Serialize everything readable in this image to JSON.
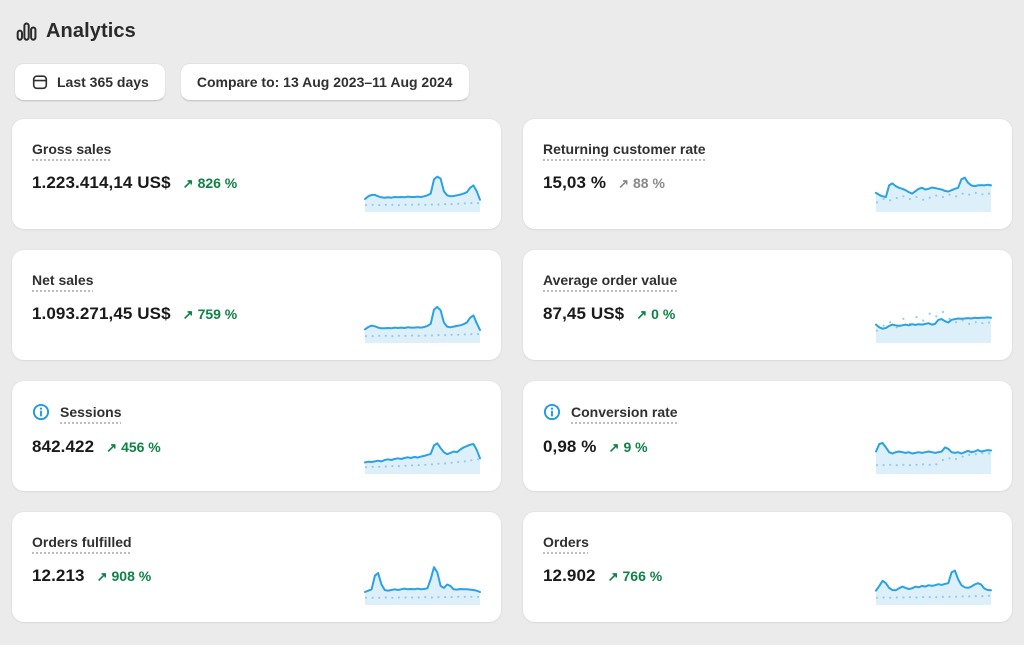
{
  "header": {
    "title": "Analytics"
  },
  "filters": {
    "date_range_label": "Last 365 days",
    "compare_label": "Compare to: 13 Aug 2023–11 Aug 2024"
  },
  "icons": {
    "trend_up": "↗"
  },
  "colors": {
    "page_background": "#ebebeb",
    "card_background": "#ffffff",
    "sparkline_blue": "#2aa2e3",
    "sparkline_fill": "rgba(42,162,227,0.16)",
    "compare_dot_blue": "#90ccef",
    "success_green": "#0e8345",
    "subdued_gray": "#8a8a8a"
  },
  "chart_data": [
    {
      "type": "line",
      "title": "Gross sales sparkline",
      "series": [
        {
          "name": "current",
          "values": [
            0.22,
            0.3,
            0.34,
            0.34,
            0.3,
            0.27,
            0.26,
            0.27,
            0.26,
            0.28,
            0.27,
            0.28,
            0.27,
            0.29,
            0.28,
            0.28,
            0.29,
            0.28,
            0.3,
            0.33,
            0.38,
            0.8,
            0.88,
            0.82,
            0.45,
            0.33,
            0.3,
            0.31,
            0.33,
            0.35,
            0.38,
            0.42,
            0.55,
            0.62,
            0.45,
            0.2
          ]
        },
        {
          "name": "previous",
          "values": [
            0.04,
            0.05,
            0.04,
            0.05,
            0.05,
            0.04,
            0.05,
            0.05,
            0.06,
            0.05,
            0.06,
            0.06,
            0.07,
            0.07,
            0.08,
            0.09,
            0.1,
            0.1
          ]
        }
      ]
    },
    {
      "type": "line",
      "title": "Returning customer rate sparkline",
      "series": [
        {
          "name": "current",
          "values": [
            0.4,
            0.34,
            0.3,
            0.28,
            0.62,
            0.68,
            0.6,
            0.55,
            0.52,
            0.48,
            0.42,
            0.38,
            0.45,
            0.52,
            0.55,
            0.5,
            0.52,
            0.56,
            0.54,
            0.52,
            0.5,
            0.46,
            0.44,
            0.48,
            0.52,
            0.55,
            0.8,
            0.85,
            0.7,
            0.62,
            0.6,
            0.62,
            0.63,
            0.62,
            0.64,
            0.62
          ]
        },
        {
          "name": "previous",
          "values": [
            0.12,
            0.22,
            0.18,
            0.25,
            0.3,
            0.22,
            0.28,
            0.2,
            0.26,
            0.32,
            0.28,
            0.35,
            0.3,
            0.38,
            0.35,
            0.4,
            0.36,
            0.38
          ]
        }
      ]
    },
    {
      "type": "line",
      "title": "Net sales sparkline",
      "series": [
        {
          "name": "current",
          "values": [
            0.24,
            0.31,
            0.35,
            0.33,
            0.29,
            0.27,
            0.27,
            0.28,
            0.27,
            0.29,
            0.28,
            0.29,
            0.28,
            0.3,
            0.29,
            0.29,
            0.3,
            0.29,
            0.31,
            0.34,
            0.4,
            0.82,
            0.9,
            0.8,
            0.44,
            0.32,
            0.3,
            0.32,
            0.34,
            0.36,
            0.39,
            0.44,
            0.58,
            0.65,
            0.42,
            0.22
          ]
        },
        {
          "name": "previous",
          "values": [
            0.04,
            0.04,
            0.05,
            0.05,
            0.04,
            0.05,
            0.05,
            0.06,
            0.05,
            0.06,
            0.06,
            0.07,
            0.07,
            0.08,
            0.08,
            0.09,
            0.1,
            0.1
          ]
        }
      ]
    },
    {
      "type": "line",
      "title": "Average order value sparkline",
      "series": [
        {
          "name": "current",
          "values": [
            0.38,
            0.3,
            0.26,
            0.28,
            0.34,
            0.38,
            0.36,
            0.34,
            0.36,
            0.38,
            0.36,
            0.39,
            0.37,
            0.39,
            0.38,
            0.4,
            0.42,
            0.38,
            0.4,
            0.52,
            0.54,
            0.48,
            0.44,
            0.52,
            0.54,
            0.56,
            0.55,
            0.56,
            0.57,
            0.56,
            0.58,
            0.57,
            0.58,
            0.58,
            0.59,
            0.58
          ]
        },
        {
          "name": "previous",
          "values": [
            0.2,
            0.35,
            0.45,
            0.3,
            0.55,
            0.4,
            0.6,
            0.5,
            0.7,
            0.62,
            0.75,
            0.55,
            0.45,
            0.5,
            0.4,
            0.45,
            0.42,
            0.44
          ]
        }
      ]
    },
    {
      "type": "line",
      "title": "Sessions sparkline",
      "series": [
        {
          "name": "current",
          "values": [
            0.18,
            0.2,
            0.19,
            0.21,
            0.23,
            0.21,
            0.25,
            0.27,
            0.25,
            0.28,
            0.3,
            0.28,
            0.31,
            0.33,
            0.31,
            0.34,
            0.32,
            0.35,
            0.37,
            0.4,
            0.43,
            0.68,
            0.74,
            0.6,
            0.48,
            0.42,
            0.46,
            0.5,
            0.48,
            0.56,
            0.62,
            0.66,
            0.7,
            0.72,
            0.55,
            0.3
          ]
        },
        {
          "name": "previous",
          "values": [
            0.04,
            0.05,
            0.05,
            0.06,
            0.07,
            0.07,
            0.08,
            0.09,
            0.1,
            0.11,
            0.12,
            0.14,
            0.15,
            0.17,
            0.19,
            0.21,
            0.24,
            0.27
          ]
        }
      ]
    },
    {
      "type": "line",
      "title": "Conversion rate sparkline",
      "series": [
        {
          "name": "current",
          "values": [
            0.5,
            0.72,
            0.75,
            0.62,
            0.48,
            0.44,
            0.48,
            0.5,
            0.48,
            0.46,
            0.48,
            0.44,
            0.46,
            0.48,
            0.46,
            0.48,
            0.5,
            0.48,
            0.46,
            0.48,
            0.5,
            0.62,
            0.58,
            0.48,
            0.46,
            0.48,
            0.44,
            0.48,
            0.52,
            0.48,
            0.5,
            0.54,
            0.5,
            0.52,
            0.54,
            0.53
          ]
        },
        {
          "name": "previous",
          "values": [
            0.1,
            0.1,
            0.11,
            0.1,
            0.11,
            0.1,
            0.11,
            0.12,
            0.11,
            0.12,
            0.25,
            0.3,
            0.28,
            0.35,
            0.4,
            0.42,
            0.45,
            0.44
          ]
        }
      ]
    },
    {
      "type": "line",
      "title": "Orders fulfilled sparkline",
      "series": [
        {
          "name": "current",
          "values": [
            0.22,
            0.26,
            0.3,
            0.7,
            0.78,
            0.45,
            0.28,
            0.26,
            0.28,
            0.3,
            0.28,
            0.3,
            0.32,
            0.3,
            0.31,
            0.3,
            0.32,
            0.3,
            0.31,
            0.33,
            0.6,
            0.95,
            0.8,
            0.4,
            0.34,
            0.44,
            0.4,
            0.3,
            0.29,
            0.31,
            0.3,
            0.3,
            0.29,
            0.28,
            0.26,
            0.22
          ]
        },
        {
          "name": "previous",
          "values": [
            0.05,
            0.05,
            0.05,
            0.06,
            0.05,
            0.06,
            0.06,
            0.06,
            0.06,
            0.07,
            0.06,
            0.07,
            0.07,
            0.07,
            0.08,
            0.08,
            0.08,
            0.08
          ]
        }
      ]
    },
    {
      "type": "line",
      "title": "Orders sparkline",
      "series": [
        {
          "name": "current",
          "values": [
            0.26,
            0.4,
            0.55,
            0.48,
            0.34,
            0.28,
            0.27,
            0.33,
            0.38,
            0.34,
            0.31,
            0.33,
            0.38,
            0.36,
            0.4,
            0.38,
            0.42,
            0.4,
            0.42,
            0.45,
            0.43,
            0.46,
            0.48,
            0.8,
            0.85,
            0.6,
            0.42,
            0.36,
            0.34,
            0.38,
            0.44,
            0.48,
            0.44,
            0.32,
            0.28,
            0.27
          ]
        },
        {
          "name": "previous",
          "values": [
            0.05,
            0.06,
            0.05,
            0.06,
            0.06,
            0.07,
            0.06,
            0.07,
            0.07,
            0.07,
            0.08,
            0.08,
            0.08,
            0.09,
            0.09,
            0.1,
            0.1,
            0.11
          ]
        }
      ]
    }
  ],
  "cards": [
    {
      "title": "Gross sales",
      "value": "1.223.414,14 US$",
      "delta": "826 %",
      "delta_tone": "success",
      "info": false,
      "chart_index": 0
    },
    {
      "title": "Returning customer rate",
      "value": "15,03 %",
      "delta": "88 %",
      "delta_tone": "subdued",
      "info": false,
      "chart_index": 1
    },
    {
      "title": "Net sales",
      "value": "1.093.271,45 US$",
      "delta": "759 %",
      "delta_tone": "success",
      "info": false,
      "chart_index": 2
    },
    {
      "title": "Average order value",
      "value": "87,45 US$",
      "delta": "0 %",
      "delta_tone": "success",
      "info": false,
      "chart_index": 3
    },
    {
      "title": "Sessions",
      "value": "842.422",
      "delta": "456 %",
      "delta_tone": "success",
      "info": true,
      "chart_index": 4
    },
    {
      "title": "Conversion rate",
      "value": "0,98 %",
      "delta": "9 %",
      "delta_tone": "success",
      "info": true,
      "chart_index": 5
    },
    {
      "title": "Orders fulfilled",
      "value": "12.213",
      "delta": "908 %",
      "delta_tone": "success",
      "info": false,
      "chart_index": 6
    },
    {
      "title": "Orders",
      "value": "12.902",
      "delta": "766 %",
      "delta_tone": "success",
      "info": false,
      "chart_index": 7
    }
  ]
}
